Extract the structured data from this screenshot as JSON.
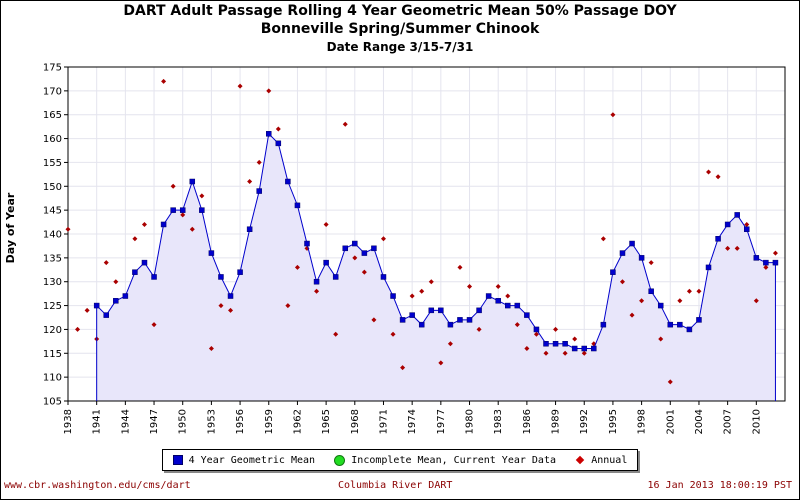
{
  "header": {
    "title": "DART Adult Passage Rolling 4 Year Geometric Mean 50% Passage DOY",
    "subtitle": "Bonneville Spring/Summer Chinook",
    "date_range": "Date Range 3/15-7/31"
  },
  "footer": {
    "url": "www.cbr.washington.edu/cms/dart",
    "source": "Columbia River DART",
    "timestamp": "16 Jan 2013 18:00:19 PST"
  },
  "legend": [
    {
      "label": "4 Year Geometric Mean",
      "symbol": "square",
      "color": "#0000cc"
    },
    {
      "label": "Incomplete Mean, Current Year Data",
      "symbol": "circle",
      "color": "#22dd22"
    },
    {
      "label": "Annual",
      "symbol": "diamond",
      "color": "#cc0000"
    }
  ],
  "chart_data": {
    "type": "line",
    "title": "DART Adult Passage Rolling 4 Year Geometric Mean 50% Passage DOY",
    "subtitle": "Bonneville Spring/Summer Chinook",
    "xlabel": "",
    "ylabel": "Day of Year",
    "xlim": [
      1938,
      2013
    ],
    "ylim": [
      105,
      175
    ],
    "yticks": [
      105,
      110,
      115,
      120,
      125,
      130,
      135,
      140,
      145,
      150,
      155,
      160,
      165,
      170,
      175
    ],
    "xticks": [
      1938,
      1941,
      1944,
      1947,
      1950,
      1953,
      1956,
      1959,
      1962,
      1965,
      1968,
      1971,
      1974,
      1977,
      1980,
      1983,
      1986,
      1989,
      1992,
      1995,
      1998,
      2001,
      2004,
      2007,
      2010
    ],
    "grid": true,
    "legend_position": "bottom",
    "series": [
      {
        "name": "4 Year Geometric Mean",
        "marker": "square",
        "color": "#0000cc",
        "x": [
          1941,
          1942,
          1943,
          1944,
          1945,
          1946,
          1947,
          1948,
          1949,
          1950,
          1951,
          1952,
          1953,
          1954,
          1955,
          1956,
          1957,
          1958,
          1959,
          1960,
          1961,
          1962,
          1963,
          1964,
          1965,
          1966,
          1967,
          1968,
          1969,
          1970,
          1971,
          1972,
          1973,
          1974,
          1975,
          1976,
          1977,
          1978,
          1979,
          1980,
          1981,
          1982,
          1983,
          1984,
          1985,
          1986,
          1987,
          1988,
          1989,
          1990,
          1991,
          1992,
          1993,
          1994,
          1995,
          1996,
          1997,
          1998,
          1999,
          2000,
          2001,
          2002,
          2003,
          2004,
          2005,
          2006,
          2007,
          2008,
          2009,
          2010,
          2011,
          2012
        ],
        "values": [
          125,
          123,
          126,
          127,
          132,
          134,
          131,
          142,
          145,
          145,
          151,
          145,
          136,
          131,
          127,
          132,
          141,
          149,
          161,
          159,
          151,
          146,
          138,
          130,
          134,
          131,
          137,
          138,
          136,
          137,
          131,
          127,
          122,
          123,
          121,
          124,
          124,
          121,
          122,
          122,
          124,
          127,
          126,
          125,
          125,
          123,
          120,
          117,
          117,
          117,
          116,
          116,
          116,
          121,
          132,
          136,
          138,
          135,
          128,
          125,
          121,
          121,
          120,
          122,
          133,
          139,
          142,
          144,
          141,
          135,
          134,
          134
        ]
      },
      {
        "name": "Annual",
        "marker": "diamond",
        "color": "#cc0000",
        "x": [
          1938,
          1939,
          1940,
          1941,
          1942,
          1943,
          1944,
          1945,
          1946,
          1947,
          1948,
          1949,
          1950,
          1951,
          1952,
          1953,
          1954,
          1955,
          1956,
          1957,
          1958,
          1959,
          1960,
          1961,
          1962,
          1963,
          1964,
          1965,
          1966,
          1967,
          1968,
          1969,
          1970,
          1971,
          1972,
          1973,
          1974,
          1975,
          1976,
          1977,
          1978,
          1979,
          1980,
          1981,
          1982,
          1983,
          1984,
          1985,
          1986,
          1987,
          1988,
          1989,
          1990,
          1991,
          1992,
          1993,
          1994,
          1995,
          1996,
          1997,
          1998,
          1999,
          2000,
          2001,
          2002,
          2003,
          2004,
          2005,
          2006,
          2007,
          2008,
          2009,
          2010,
          2011,
          2012
        ],
        "values": [
          141,
          120,
          124,
          118,
          134,
          130,
          127,
          139,
          142,
          121,
          172,
          150,
          144,
          141,
          148,
          116,
          125,
          124,
          171,
          151,
          155,
          170,
          162,
          125,
          133,
          137,
          128,
          142,
          119,
          163,
          135,
          132,
          122,
          139,
          119,
          112,
          127,
          128,
          130,
          113,
          117,
          133,
          129,
          120,
          127,
          129,
          127,
          121,
          116,
          119,
          115,
          120,
          115,
          118,
          115,
          117,
          139,
          165,
          130,
          123,
          126,
          134,
          118,
          109,
          126,
          128,
          128,
          153,
          152,
          137,
          137,
          142,
          126,
          133,
          136
        ]
      }
    ]
  }
}
